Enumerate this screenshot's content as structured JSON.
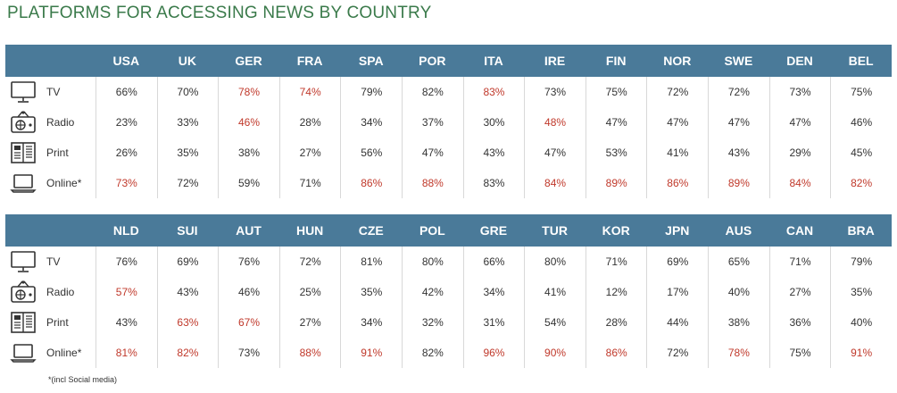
{
  "title": "PLATFORMS FOR ACCESSING NEWS BY COUNTRY",
  "footnote": "*(incl Social media)",
  "colors": {
    "title": "#3a7a4a",
    "header_bg": "#4a7a99",
    "highlight": "#c0392b",
    "normal": "#333333"
  },
  "rows": [
    {
      "label": "TV",
      "icon": "tv-icon"
    },
    {
      "label": "Radio",
      "icon": "radio-icon"
    },
    {
      "label": "Print",
      "icon": "newspaper-icon"
    },
    {
      "label": "Online*",
      "icon": "laptop-icon"
    }
  ],
  "chart_data": [
    {
      "type": "table",
      "columns": [
        "USA",
        "UK",
        "GER",
        "FRA",
        "SPA",
        "POR",
        "ITA",
        "IRE",
        "FIN",
        "NOR",
        "SWE",
        "DEN",
        "BEL"
      ],
      "rows": [
        {
          "name": "TV",
          "values": [
            "66%",
            "70%",
            "78%",
            "74%",
            "79%",
            "82%",
            "83%",
            "73%",
            "75%",
            "72%",
            "72%",
            "73%",
            "75%"
          ],
          "highlight": [
            false,
            false,
            true,
            true,
            false,
            false,
            true,
            false,
            false,
            false,
            false,
            false,
            false
          ]
        },
        {
          "name": "Radio",
          "values": [
            "23%",
            "33%",
            "46%",
            "28%",
            "34%",
            "37%",
            "30%",
            "48%",
            "47%",
            "47%",
            "47%",
            "47%",
            "46%"
          ],
          "highlight": [
            false,
            false,
            true,
            false,
            false,
            false,
            false,
            true,
            false,
            false,
            false,
            false,
            false
          ]
        },
        {
          "name": "Print",
          "values": [
            "26%",
            "35%",
            "38%",
            "27%",
            "56%",
            "47%",
            "43%",
            "47%",
            "53%",
            "41%",
            "43%",
            "29%",
            "45%"
          ],
          "highlight": [
            false,
            false,
            false,
            false,
            false,
            false,
            false,
            false,
            false,
            false,
            false,
            false,
            false
          ]
        },
        {
          "name": "Online*",
          "values": [
            "73%",
            "72%",
            "59%",
            "71%",
            "86%",
            "88%",
            "83%",
            "84%",
            "89%",
            "86%",
            "89%",
            "84%",
            "82%"
          ],
          "highlight": [
            true,
            false,
            false,
            false,
            true,
            true,
            false,
            true,
            true,
            true,
            true,
            true,
            true
          ]
        }
      ]
    },
    {
      "type": "table",
      "columns": [
        "NLD",
        "SUI",
        "AUT",
        "HUN",
        "CZE",
        "POL",
        "GRE",
        "TUR",
        "KOR",
        "JPN",
        "AUS",
        "CAN",
        "BRA"
      ],
      "rows": [
        {
          "name": "TV",
          "values": [
            "76%",
            "69%",
            "76%",
            "72%",
            "81%",
            "80%",
            "66%",
            "80%",
            "71%",
            "69%",
            "65%",
            "71%",
            "79%"
          ],
          "highlight": [
            false,
            false,
            false,
            false,
            false,
            false,
            false,
            false,
            false,
            false,
            false,
            false,
            false
          ]
        },
        {
          "name": "Radio",
          "values": [
            "57%",
            "43%",
            "46%",
            "25%",
            "35%",
            "42%",
            "34%",
            "41%",
            "12%",
            "17%",
            "40%",
            "27%",
            "35%"
          ],
          "highlight": [
            true,
            false,
            false,
            false,
            false,
            false,
            false,
            false,
            false,
            false,
            false,
            false,
            false
          ]
        },
        {
          "name": "Print",
          "values": [
            "43%",
            "63%",
            "67%",
            "27%",
            "34%",
            "32%",
            "31%",
            "54%",
            "28%",
            "44%",
            "38%",
            "36%",
            "40%"
          ],
          "highlight": [
            false,
            true,
            true,
            false,
            false,
            false,
            false,
            false,
            false,
            false,
            false,
            false,
            false
          ]
        },
        {
          "name": "Online*",
          "values": [
            "81%",
            "82%",
            "73%",
            "88%",
            "91%",
            "82%",
            "96%",
            "90%",
            "86%",
            "72%",
            "78%",
            "75%",
            "91%"
          ],
          "highlight": [
            true,
            true,
            false,
            true,
            true,
            false,
            true,
            true,
            true,
            false,
            true,
            false,
            true
          ]
        }
      ]
    }
  ]
}
